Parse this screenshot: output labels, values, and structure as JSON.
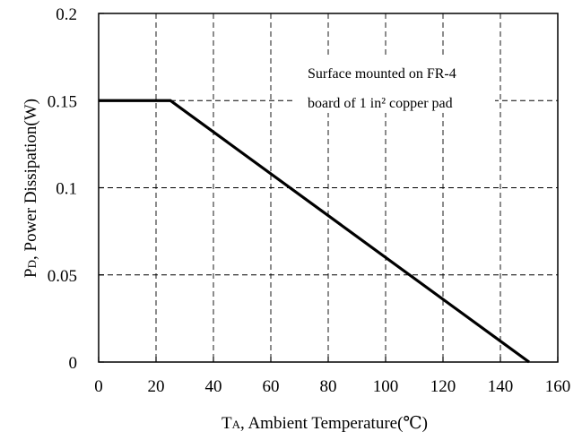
{
  "chart_data": {
    "type": "line",
    "title": "",
    "xlabel_main": "T",
    "xlabel_sub": "A",
    "xlabel_rest": ", Ambient Temperature(℃)",
    "ylabel_main": "P",
    "ylabel_sub": "D",
    "ylabel_rest": ", Power Dissipation(W)",
    "xlim": [
      0,
      160
    ],
    "ylim": [
      0,
      0.2
    ],
    "x_ticks": [
      "0",
      "20",
      "40",
      "60",
      "80",
      "100",
      "120",
      "140",
      "160"
    ],
    "y_ticks": [
      "0",
      "0.05",
      "0.1",
      "0.15",
      "0.2"
    ],
    "grid": true,
    "legend": "none",
    "series": [
      {
        "x": [
          0,
          25,
          150
        ],
        "y": [
          0.15,
          0.15,
          0
        ]
      }
    ],
    "annotation": {
      "line1": "Surface mounted on FR-4",
      "line2": "board of 1 in² copper pad"
    }
  }
}
